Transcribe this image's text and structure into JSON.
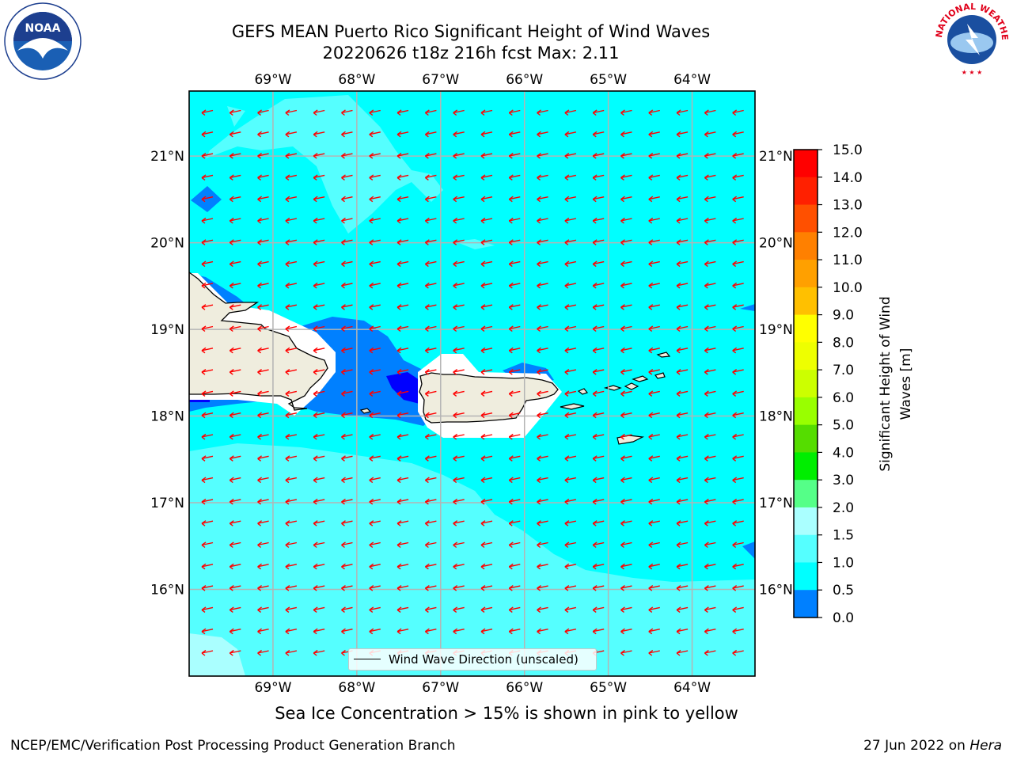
{
  "title_line1": "GEFS MEAN Puerto Rico Significant Height of Wind Waves",
  "title_line2": "20220626 t18z 216h fcst   Max: 2.11",
  "logos": {
    "noaa_text": "NOAA",
    "nws_text": "NATIONAL WEATHER SERVICE"
  },
  "map": {
    "lon_labels": [
      "69°W",
      "68°W",
      "67°W",
      "66°W",
      "65°W",
      "64°W"
    ],
    "lat_labels": [
      "21°N",
      "20°N",
      "19°N",
      "18°N",
      "17°N",
      "16°N"
    ],
    "lon_values": [
      -69,
      -68,
      -67,
      -66,
      -65,
      -64
    ],
    "lat_values": [
      21,
      20,
      19,
      18,
      17,
      16
    ],
    "extent": {
      "lon_min": -70,
      "lon_max": -63.25,
      "lat_min": 15,
      "lat_max": 21.75
    },
    "wind_wave_direction": "westward (from east-northeast)",
    "colors": {
      "ocean_1_1p5": "#00ffff",
      "ocean_1p5_2": "#55ffff",
      "ocean_2_3": "#aaffff",
      "ocean_0p5_1": "#0080ff",
      "ocean_0_0p5": "#0000ff",
      "land": "#efedde",
      "arrows": "#ff0000"
    }
  },
  "legend": {
    "label": "Wind Wave Direction (unscaled)"
  },
  "colorbar": {
    "label": "Significant Height of Wind Waves [m]",
    "label_line1": "Significant Height of Wind",
    "label_line2": "Waves [m]",
    "ticks": [
      "15.0",
      "14.0",
      "13.0",
      "12.0",
      "11.0",
      "10.0",
      "9.0",
      "8.0",
      "7.0",
      "6.0",
      "5.0",
      "4.0",
      "3.0",
      "2.0",
      "1.5",
      "1.0",
      "0.5",
      "0.0"
    ],
    "colors": [
      "#ff0000",
      "#ff2000",
      "#ff5000",
      "#ff8000",
      "#ffa000",
      "#ffc000",
      "#ffff00",
      "#eeff00",
      "#ccff00",
      "#99ff00",
      "#55dd00",
      "#00ee00",
      "#55ff88",
      "#aaffff",
      "#55ffff",
      "#00ffff",
      "#0080ff",
      "#0000ff"
    ]
  },
  "sea_ice_note": "Sea Ice Concentration > 15% is shown in pink to yellow",
  "footer": {
    "left": "NCEP/EMC/Verification Post Processing Product Generation Branch",
    "right_prefix": "27 Jun 2022 on ",
    "right_host": "Hera"
  }
}
